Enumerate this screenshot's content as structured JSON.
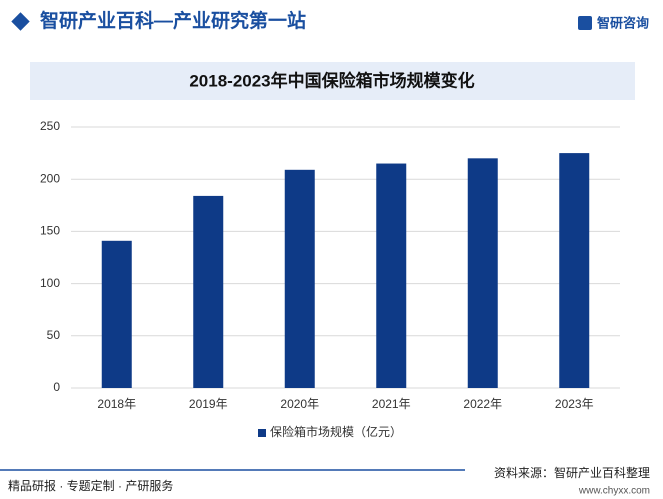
{
  "header": {
    "title": "智研产业百科—产业研究第一站",
    "logo": "智研咨询"
  },
  "chart_data": {
    "type": "bar",
    "title": "2018-2023年中国保险箱市场规模变化",
    "categories": [
      "2018年",
      "2019年",
      "2020年",
      "2021年",
      "2022年",
      "2023年"
    ],
    "series": [
      {
        "name": "保险箱市场规模（亿元）",
        "color": "#0e3a87",
        "values": [
          141,
          184,
          209,
          215,
          220,
          225
        ]
      }
    ],
    "ylim": [
      0,
      250
    ],
    "yticks": [
      0,
      50,
      100,
      150,
      200,
      250
    ],
    "grid": true,
    "legend": "bottom"
  },
  "footer": {
    "left": "精品研报 · 专题定制 · 产研服务",
    "source": "资料来源：智研产业百科整理",
    "url": "www.chyxx.com"
  }
}
